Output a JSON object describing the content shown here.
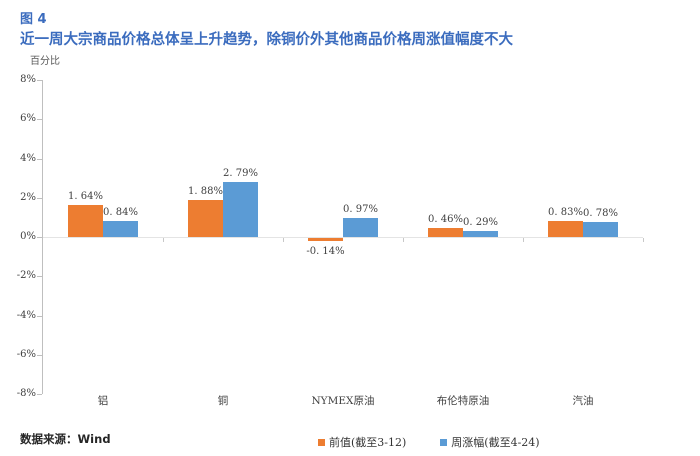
{
  "figure": {
    "label": "图 4",
    "title": "近一周大宗商品价格总体呈上升趋势，除铜价外其他商品价格周涨值幅度不大",
    "unit_label": "百分比",
    "source_label": "数据来源：Wind"
  },
  "colors": {
    "title_blue": "#3B6CBE",
    "series_previous_orange": "#ED7D31",
    "series_weekly_blue": "#5B9BD5",
    "axis_line": "#BFBFBF",
    "axis_text": "#404040"
  },
  "chart_data": {
    "type": "bar",
    "title": "近一周大宗商品价格总体呈上升趋势，除铜价外其他商品价格周涨值幅度不大",
    "ylabel": "百分比",
    "ylim": [
      -8,
      8
    ],
    "ytick_labels": [
      "8%",
      "6%",
      "4%",
      "2%",
      "0%",
      "-2%",
      "-4%",
      "-6%",
      "-8%"
    ],
    "grid": false,
    "legend_position": "bottom",
    "categories": [
      "铝",
      "铜",
      "NYMEX原油",
      "布伦特原油",
      "汽油"
    ],
    "series": [
      {
        "name": "前值(截至3-12)",
        "color": "#ED7D31",
        "values": [
          1.64,
          1.88,
          -0.14,
          0.46,
          0.83
        ],
        "labels": [
          "1. 64%",
          "1. 88%",
          "-0. 14%",
          "0. 46%",
          "0. 83%"
        ]
      },
      {
        "name": "周涨幅(截至4-24)",
        "color": "#5B9BD5",
        "values": [
          0.84,
          2.79,
          0.97,
          0.29,
          0.78
        ],
        "labels": [
          "0. 84%",
          "2. 79%",
          "0. 97%",
          "0. 29%",
          "0. 78%"
        ]
      }
    ]
  }
}
